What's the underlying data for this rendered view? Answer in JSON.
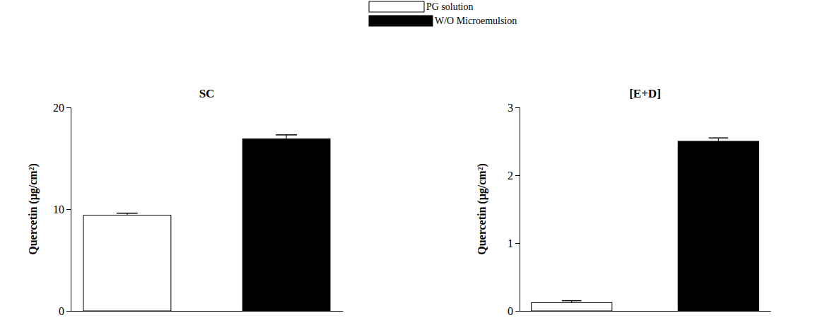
{
  "chart_data": [
    {
      "type": "bar",
      "title": "SC",
      "y_label": "Quercetin (μg/cm²)",
      "legend": "top",
      "ylim": [
        0,
        20
      ],
      "yticks": [
        0,
        10,
        20
      ],
      "series": [
        {
          "name": "PG solution",
          "color": "#ffffff",
          "values": [
            9.4
          ],
          "errors": [
            0.2
          ]
        },
        {
          "name": "W/O Microemulsion",
          "color": "#000000",
          "values": [
            16.9
          ],
          "errors": [
            0.4
          ]
        }
      ]
    },
    {
      "type": "bar",
      "title": "[E+D]",
      "y_label": "Quercetin (μg/cm²)",
      "ylim": [
        0,
        3
      ],
      "yticks": [
        0,
        1,
        2,
        3
      ],
      "series": [
        {
          "color": "#ffffff",
          "values": [
            0.12
          ],
          "errors": [
            0.03
          ]
        },
        {
          "color": "#000000",
          "values": [
            2.5
          ],
          "errors": [
            0.05
          ]
        }
      ]
    }
  ]
}
